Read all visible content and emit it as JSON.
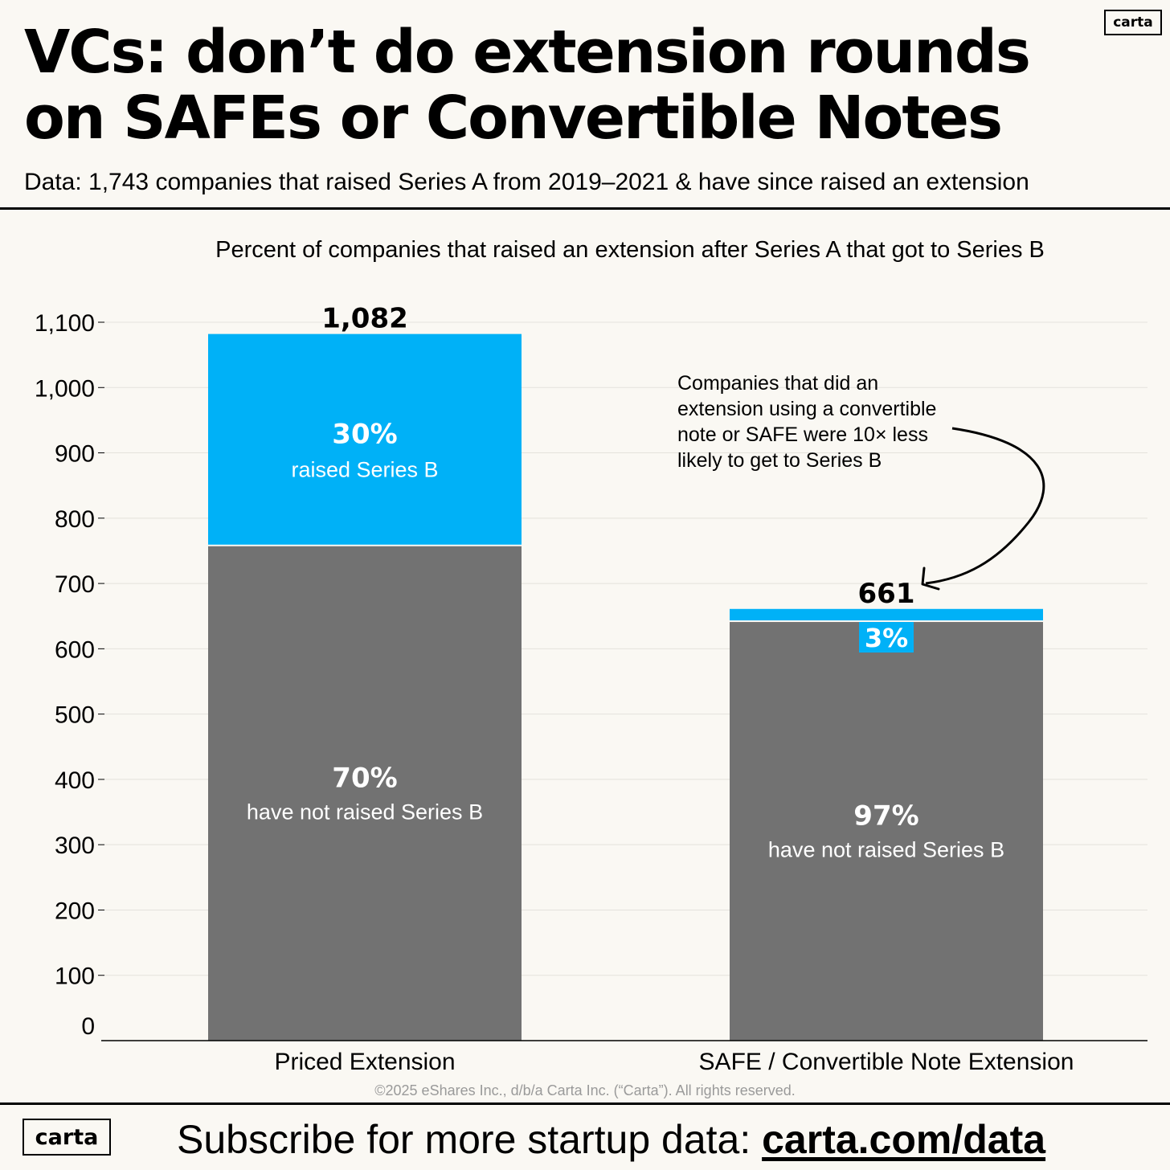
{
  "brand": {
    "logo_text": "carta"
  },
  "header": {
    "title": "VCs: don’t do extension rounds on SAFEs or Convertible Notes",
    "subtitle": "Data: 1,743 companies that raised Series A from 2019–2021 & have since raised an extension"
  },
  "footer": {
    "copyright": "©2025 eShares Inc., d/b/a Carta Inc. (“Carta”). All rights reserved.",
    "cta_prefix": "Subscribe for more startup data: ",
    "cta_link": "carta.com/data"
  },
  "colors": {
    "raised": "#00b1f7",
    "not_raised": "#727272",
    "background": "#faf8f3"
  },
  "chart_data": {
    "type": "bar",
    "stacked": true,
    "title": "Percent of companies that raised an extension after Series A that got to Series B",
    "categories": [
      "Priced Extension",
      "SAFE / Convertible Note Extension"
    ],
    "totals": [
      1082,
      661
    ],
    "total_labels": [
      "1,082",
      "661"
    ],
    "series": [
      {
        "key": "not_raised",
        "values": [
          757,
          641
        ],
        "pct_labels": [
          "70%",
          "97%"
        ],
        "text": "have not raised Series B"
      },
      {
        "key": "raised",
        "values": [
          325,
          20
        ],
        "pct_labels": [
          "30%",
          "3%"
        ],
        "text": "raised Series B"
      }
    ],
    "ylim": [
      0,
      1100
    ],
    "yticks": [
      0,
      100,
      200,
      300,
      400,
      500,
      600,
      700,
      800,
      900,
      1000,
      1100
    ],
    "ytick_labels": [
      "0",
      "100",
      "200",
      "300",
      "400",
      "500",
      "600",
      "700",
      "800",
      "900",
      "1,000",
      "1,100"
    ],
    "grid": true,
    "annotation": {
      "text": "Companies that did an extension using a convertible note or SAFE were 10× less likely to get to Series B",
      "lines": [
        "Companies that did an",
        "extension using a convertible",
        "note or SAFE were 10× less",
        "likely to get to Series B"
      ],
      "points_to": "SAFE / Convertible Note Extension"
    }
  }
}
